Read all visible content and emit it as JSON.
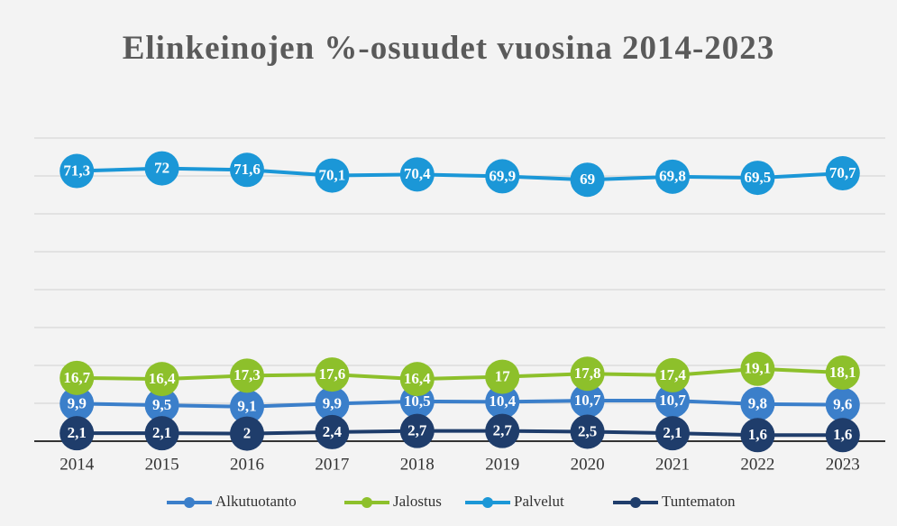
{
  "chart_data": {
    "type": "line",
    "title": "Elinkeinojen %-osuudet vuosina 2014-2023",
    "categories": [
      "2014",
      "2015",
      "2016",
      "2017",
      "2018",
      "2019",
      "2020",
      "2021",
      "2022",
      "2023"
    ],
    "series": [
      {
        "name": "Alkutuotanto",
        "color": "#3b7fca",
        "values": [
          9.9,
          9.5,
          9.1,
          9.9,
          10.5,
          10.4,
          10.7,
          10.7,
          9.8,
          9.6
        ],
        "value_labels": [
          "9,9",
          "9,5",
          "9,1",
          "9,9",
          "10,5",
          "10,4",
          "10,7",
          "10,7",
          "9,8",
          "9,6"
        ]
      },
      {
        "name": "Jalostus",
        "color": "#8dc02b",
        "values": [
          16.7,
          16.4,
          17.3,
          17.6,
          16.4,
          17,
          17.8,
          17.4,
          19.1,
          18.1
        ],
        "value_labels": [
          "16,7",
          "16,4",
          "17,3",
          "17,6",
          "16,4",
          "17",
          "17,8",
          "17,4",
          "19,1",
          "18,1"
        ]
      },
      {
        "name": "Palvelut",
        "color": "#1b97d7",
        "values": [
          71.3,
          72,
          71.6,
          70.1,
          70.4,
          69.9,
          69,
          69.8,
          69.5,
          70.7
        ],
        "value_labels": [
          "71,3",
          "72",
          "71,6",
          "70,1",
          "70,4",
          "69,9",
          "69",
          "69,8",
          "69,5",
          "70,7"
        ]
      },
      {
        "name": "Tuntematon",
        "color": "#1f3d6b",
        "values": [
          2.1,
          2.1,
          2,
          2.4,
          2.7,
          2.7,
          2.5,
          2.1,
          1.6,
          1.6
        ],
        "value_labels": [
          "2,1",
          "2,1",
          "2",
          "2,4",
          "2,7",
          "2,7",
          "2,5",
          "2,1",
          "1,6",
          "1,6"
        ]
      }
    ],
    "ylim": [
      0,
      80
    ],
    "yticks": [
      0,
      10,
      20,
      30,
      40,
      50,
      60,
      70,
      80
    ],
    "grid": true,
    "legend": "bottom"
  }
}
